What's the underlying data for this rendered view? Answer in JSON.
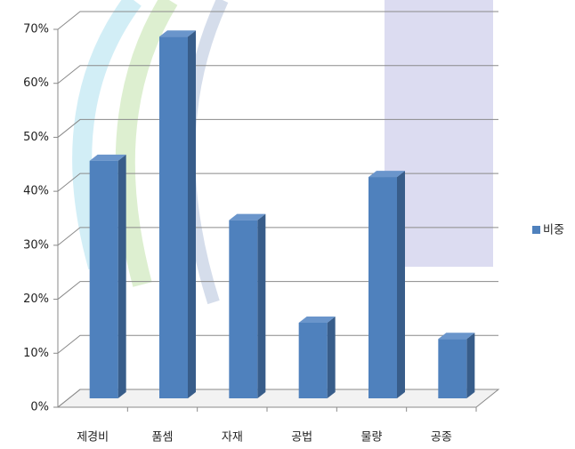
{
  "chart_data": {
    "type": "bar3d",
    "categories": [
      "제경비",
      "품셈",
      "자재",
      "공법",
      "물량",
      "공종"
    ],
    "series": [
      {
        "name": "비중",
        "color": "#4f81bd",
        "values": [
          44,
          67,
          33,
          14,
          41,
          11
        ]
      }
    ],
    "ylim": [
      0,
      70
    ],
    "yticks": [
      {
        "value": 0,
        "label": "0%"
      },
      {
        "value": 10,
        "label": "10%"
      },
      {
        "value": 20,
        "label": "20%"
      },
      {
        "value": 30,
        "label": "30%"
      },
      {
        "value": 40,
        "label": "40%"
      },
      {
        "value": 50,
        "label": "50%"
      },
      {
        "value": 60,
        "label": "60%"
      },
      {
        "value": 70,
        "label": "70%"
      }
    ],
    "grid": true,
    "legend": "right"
  }
}
